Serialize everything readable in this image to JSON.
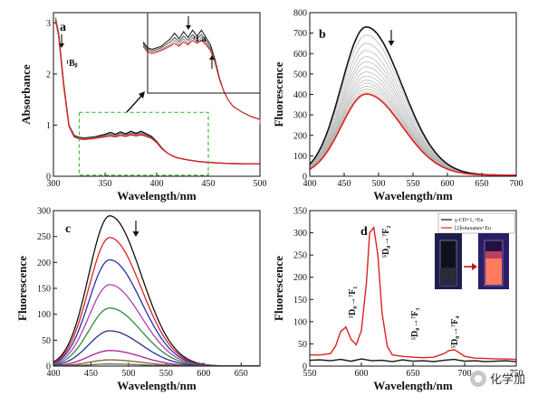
{
  "chart_data": [
    {
      "panel": "a",
      "type": "line",
      "xlabel": "Wavelength/nm",
      "ylabel": "Absorbance",
      "xlim": [
        300,
        500
      ],
      "ylim": [
        0,
        3.2
      ],
      "xticks": [
        300,
        350,
        400,
        450,
        500
      ],
      "yticks": [
        0,
        1,
        2,
        3
      ],
      "annotations": [
        "¹Bᵦ",
        "¹La"
      ],
      "inset": {
        "xlim": [
          325,
          450
        ],
        "ylim": [
          0.45,
          1.0
        ]
      },
      "series": [
        {
          "color": "#111111",
          "x": [
            302,
            305,
            310,
            315,
            320,
            325,
            330,
            340,
            350,
            355,
            360,
            365,
            370,
            375,
            380,
            385,
            390,
            395,
            400,
            405,
            410,
            415,
            420,
            430,
            440,
            450,
            470,
            500
          ],
          "y": [
            3.1,
            2.8,
            1.8,
            1.0,
            0.8,
            0.76,
            0.75,
            0.77,
            0.82,
            0.86,
            0.82,
            0.87,
            0.83,
            0.88,
            0.84,
            0.88,
            0.83,
            0.78,
            0.68,
            0.55,
            0.46,
            0.4,
            0.36,
            0.32,
            0.29,
            0.27,
            0.25,
            0.24
          ]
        },
        {
          "color": "#555555",
          "x": [
            302,
            305,
            310,
            315,
            320,
            325,
            330,
            340,
            350,
            355,
            360,
            365,
            370,
            375,
            380,
            385,
            390,
            395,
            400,
            405,
            410,
            415,
            420,
            430,
            440,
            450,
            470,
            500
          ],
          "y": [
            3.1,
            2.8,
            1.8,
            1.0,
            0.79,
            0.75,
            0.74,
            0.76,
            0.8,
            0.83,
            0.8,
            0.84,
            0.81,
            0.85,
            0.82,
            0.85,
            0.81,
            0.76,
            0.67,
            0.54,
            0.46,
            0.4,
            0.36,
            0.32,
            0.29,
            0.27,
            0.25,
            0.24
          ]
        },
        {
          "color": "#888888",
          "x": [
            302,
            305,
            310,
            315,
            320,
            325,
            330,
            340,
            350,
            355,
            360,
            365,
            370,
            375,
            380,
            385,
            390,
            395,
            400,
            405,
            410,
            415,
            420,
            430,
            440,
            450,
            470,
            500
          ],
          "y": [
            3.1,
            2.8,
            1.8,
            1.0,
            0.78,
            0.74,
            0.73,
            0.75,
            0.78,
            0.81,
            0.78,
            0.82,
            0.79,
            0.83,
            0.8,
            0.83,
            0.79,
            0.75,
            0.66,
            0.54,
            0.46,
            0.4,
            0.36,
            0.32,
            0.29,
            0.27,
            0.25,
            0.24
          ]
        },
        {
          "color": "#e02020",
          "x": [
            302,
            305,
            310,
            315,
            320,
            325,
            330,
            340,
            350,
            355,
            360,
            365,
            370,
            375,
            380,
            385,
            390,
            395,
            400,
            405,
            410,
            415,
            420,
            430,
            440,
            450,
            470,
            500
          ],
          "y": [
            3.05,
            2.75,
            1.75,
            0.98,
            0.77,
            0.73,
            0.72,
            0.74,
            0.77,
            0.79,
            0.77,
            0.8,
            0.78,
            0.81,
            0.79,
            0.81,
            0.78,
            0.74,
            0.66,
            0.54,
            0.46,
            0.4,
            0.36,
            0.32,
            0.29,
            0.27,
            0.25,
            0.24
          ]
        }
      ]
    },
    {
      "panel": "b",
      "type": "line",
      "xlabel": "Wavelength/nm",
      "ylabel": "Fluorescence",
      "xlim": [
        400,
        700
      ],
      "ylim": [
        0,
        800
      ],
      "xticks": [
        400,
        450,
        500,
        550,
        600,
        650,
        700
      ],
      "yticks": [
        0,
        100,
        200,
        300,
        400,
        500,
        600,
        700,
        800
      ],
      "curve_shape": {
        "peak_x": 482,
        "sigma_left": 36,
        "sigma_right": 52,
        "baseline": 5
      },
      "peaks": [
        730,
        690,
        650,
        615,
        585,
        560,
        535,
        510,
        490,
        470,
        455,
        440,
        425,
        412,
        402
      ],
      "first_color": "#111111",
      "mid_color": "#b0b0b0",
      "last_color": "#e02020"
    },
    {
      "panel": "c",
      "type": "line",
      "xlabel": "Wavelength/nm",
      "ylabel": "Fluorescence",
      "xlim": [
        400,
        675
      ],
      "ylim": [
        0,
        300
      ],
      "xticks": [
        400,
        450,
        500,
        550,
        600,
        650
      ],
      "yticks": [
        0,
        50,
        100,
        150,
        200,
        250,
        300
      ],
      "curve_shape": {
        "peak_x": 475,
        "sigma_left": 28,
        "sigma_right": 42,
        "baseline": 0
      },
      "series": [
        {
          "color": "#111111",
          "peak": 290
        },
        {
          "color": "#e02020",
          "peak": 248
        },
        {
          "color": "#2233aa",
          "peak": 205
        },
        {
          "color": "#b040b0",
          "peak": 157
        },
        {
          "color": "#2e8b3e",
          "peak": 112
        },
        {
          "color": "#223388",
          "peak": 68
        },
        {
          "color": "#a020a0",
          "peak": 30
        },
        {
          "color": "#8b5a2b",
          "peak": 12
        },
        {
          "color": "#666666",
          "peak": 4
        }
      ]
    },
    {
      "panel": "d",
      "type": "line",
      "xlabel": "Wavelength/nm",
      "ylabel": "Fluorescence",
      "xlim": [
        550,
        750
      ],
      "ylim": [
        0,
        350
      ],
      "xticks": [
        550,
        600,
        650,
        700,
        750
      ],
      "yticks": [
        0,
        50,
        100,
        150,
        200,
        250,
        300,
        350
      ],
      "annotations": [
        "⁵D₀→⁷F₁",
        "⁵D₀→⁷F₂",
        "⁵D₀→⁷F₃",
        "⁵D₀→⁷F₄"
      ],
      "legend": [
        "γ-CD+1₂+Eu",
        "[2]rotaxanes+Eu"
      ],
      "series": [
        {
          "name": "γ-CD+1₂+Eu",
          "color": "#111111",
          "x": [
            550,
            560,
            570,
            580,
            590,
            600,
            610,
            620,
            630,
            640,
            650,
            660,
            670,
            680,
            690,
            700,
            710,
            720,
            730,
            740,
            750
          ],
          "y": [
            13,
            14,
            12,
            15,
            11,
            16,
            12,
            13,
            10,
            14,
            11,
            12,
            10,
            13,
            15,
            11,
            12,
            10,
            11,
            12,
            10
          ]
        },
        {
          "name": "[2]rotaxanes+Eu",
          "color": "#e02020",
          "x": [
            550,
            560,
            570,
            575,
            580,
            585,
            590,
            595,
            600,
            605,
            608,
            612,
            616,
            620,
            625,
            630,
            640,
            650,
            660,
            670,
            680,
            685,
            690,
            695,
            700,
            710,
            720,
            730,
            740,
            750
          ],
          "y": [
            25,
            25,
            28,
            45,
            78,
            88,
            60,
            48,
            80,
            190,
            300,
            312,
            250,
            120,
            45,
            25,
            22,
            20,
            19,
            20,
            28,
            35,
            37,
            30,
            22,
            18,
            17,
            16,
            16,
            15
          ]
        }
      ]
    }
  ],
  "watermark_text": "化学加"
}
